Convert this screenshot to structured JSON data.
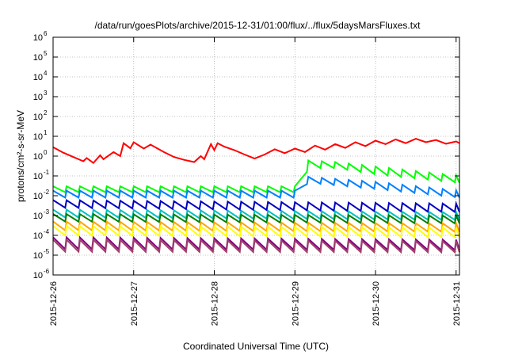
{
  "chart_data": {
    "type": "line",
    "title": "/data/run/goesPlots/archive/2015-12-31/01:00/flux/../flux/5daysMarsFluxes.txt",
    "xlabel": "Coordinated Universal Time (UTC)",
    "ylabel": "protons/cm²-s-sr-MeV",
    "y_scale": "log",
    "ylim": [
      1e-06,
      1000000.0
    ],
    "xlim": [
      "2015-12-26T00:00",
      "2015-12-31T01:00"
    ],
    "x_ticks": [
      "2015-12-26",
      "2015-12-27",
      "2015-12-28",
      "2015-12-29",
      "2015-12-30",
      "2015-12-31"
    ],
    "y_ticks": [
      {
        "value": 1e-06,
        "mantissa": "10",
        "exp": "-6"
      },
      {
        "value": 1e-05,
        "mantissa": "10",
        "exp": "-5"
      },
      {
        "value": 0.0001,
        "mantissa": "10",
        "exp": "-4"
      },
      {
        "value": 0.001,
        "mantissa": "10",
        "exp": "-3"
      },
      {
        "value": 0.01,
        "mantissa": "10",
        "exp": "-2"
      },
      {
        "value": 0.1,
        "mantissa": "10",
        "exp": "-1"
      },
      {
        "value": 1,
        "mantissa": "10",
        "exp": "0"
      },
      {
        "value": 10,
        "mantissa": "10",
        "exp": "1"
      },
      {
        "value": 100,
        "mantissa": "10",
        "exp": "2"
      },
      {
        "value": 1000,
        "mantissa": "10",
        "exp": "3"
      },
      {
        "value": 10000,
        "mantissa": "10",
        "exp": "4"
      },
      {
        "value": 100000,
        "mantissa": "10",
        "exp": "5"
      },
      {
        "value": 1000000,
        "mantissa": "10",
        "exp": "6"
      }
    ],
    "grid": true,
    "legend": "none",
    "series": [
      {
        "color": "#ff0000",
        "points": [
          [
            "2015-12-26T00:00",
            2.8
          ],
          [
            "2015-12-26T03:00",
            1.5
          ],
          [
            "2015-12-26T06:00",
            0.9
          ],
          [
            "2015-12-26T09:00",
            0.55
          ],
          [
            "2015-12-26T10:00",
            0.8
          ],
          [
            "2015-12-26T12:00",
            0.45
          ],
          [
            "2015-12-26T14:00",
            1.1
          ],
          [
            "2015-12-26T15:00",
            0.7
          ],
          [
            "2015-12-26T18:00",
            1.6
          ],
          [
            "2015-12-26T20:00",
            1.0
          ],
          [
            "2015-12-26T21:00",
            4.5
          ],
          [
            "2015-12-26T23:00",
            2.5
          ],
          [
            "2015-12-27T00:00",
            5.0
          ],
          [
            "2015-12-27T03:00",
            2.4
          ],
          [
            "2015-12-27T05:00",
            3.8
          ],
          [
            "2015-12-27T09:00",
            1.6
          ],
          [
            "2015-12-27T12:00",
            0.9
          ],
          [
            "2015-12-27T15:00",
            0.65
          ],
          [
            "2015-12-27T18:00",
            0.5
          ],
          [
            "2015-12-27T20:00",
            1.0
          ],
          [
            "2015-12-27T21:00",
            0.7
          ],
          [
            "2015-12-27T23:00",
            4.0
          ],
          [
            "2015-12-28T00:00",
            2.0
          ],
          [
            "2015-12-28T01:00",
            4.5
          ],
          [
            "2015-12-28T03:00",
            3.0
          ],
          [
            "2015-12-28T06:00",
            2.0
          ],
          [
            "2015-12-28T09:00",
            1.2
          ],
          [
            "2015-12-28T12:00",
            0.75
          ],
          [
            "2015-12-28T15:00",
            1.2
          ],
          [
            "2015-12-28T18:00",
            2.2
          ],
          [
            "2015-12-28T21:00",
            1.4
          ],
          [
            "2015-12-29T00:00",
            2.4
          ],
          [
            "2015-12-29T03:00",
            1.6
          ],
          [
            "2015-12-29T06:00",
            3.4
          ],
          [
            "2015-12-29T09:00",
            2.1
          ],
          [
            "2015-12-29T12:00",
            4.0
          ],
          [
            "2015-12-29T15:00",
            2.6
          ],
          [
            "2015-12-29T18:00",
            5.0
          ],
          [
            "2015-12-29T21:00",
            3.2
          ],
          [
            "2015-12-30T00:00",
            6.0
          ],
          [
            "2015-12-30T03:00",
            4.0
          ],
          [
            "2015-12-30T06:00",
            7.0
          ],
          [
            "2015-12-30T09:00",
            4.5
          ],
          [
            "2015-12-30T12:00",
            7.5
          ],
          [
            "2015-12-30T15:00",
            5.0
          ],
          [
            "2015-12-30T18:00",
            6.5
          ],
          [
            "2015-12-30T21:00",
            4.2
          ],
          [
            "2015-12-31T00:00",
            5.5
          ],
          [
            "2015-12-31T01:00",
            4.5
          ]
        ]
      },
      {
        "color": "#00ff00",
        "sawtooth": {
          "period_hours": 4,
          "phases": [
            [
              "2015-12-26T00:00",
              0.03,
              0.015
            ],
            [
              "2015-12-29T00:00",
              0.03,
              0.015
            ],
            [
              "2015-12-29T01:00",
              0.06,
              0.03
            ],
            [
              "2015-12-29T04:00",
              0.6,
              0.25
            ],
            [
              "2015-12-29T12:00",
              0.5,
              0.25
            ],
            [
              "2015-12-30T00:00",
              0.3,
              0.12
            ],
            [
              "2015-12-31T01:00",
              0.1,
              0.045
            ]
          ]
        }
      },
      {
        "color": "#0080ff",
        "sawtooth": {
          "period_hours": 4,
          "phases": [
            [
              "2015-12-26T00:00",
              0.018,
              0.008
            ],
            [
              "2015-12-29T00:00",
              0.018,
              0.008
            ],
            [
              "2015-12-29T01:00",
              0.04,
              0.02
            ],
            [
              "2015-12-29T04:00",
              0.09,
              0.045
            ],
            [
              "2015-12-30T00:00",
              0.05,
              0.022
            ],
            [
              "2015-12-31T01:00",
              0.018,
              0.008
            ]
          ]
        }
      },
      {
        "color": "#0000c0",
        "sawtooth": {
          "period_hours": 4,
          "phases": [
            [
              "2015-12-26T00:00",
              0.006,
              0.0025
            ],
            [
              "2015-12-31T01:00",
              0.004,
              0.0015
            ]
          ]
        }
      },
      {
        "color": "#00c0c0",
        "sawtooth": {
          "period_hours": 4,
          "phases": [
            [
              "2015-12-26T00:00",
              0.002,
              0.0008
            ],
            [
              "2015-12-31T01:00",
              0.0015,
              0.0006
            ]
          ]
        }
      },
      {
        "color": "#008000",
        "sawtooth": {
          "period_hours": 4,
          "phases": [
            [
              "2015-12-26T00:00",
              0.0012,
              0.0005
            ],
            [
              "2015-12-31T01:00",
              0.001,
              0.0004
            ]
          ]
        }
      },
      {
        "color": "#ffa500",
        "sawtooth": {
          "period_hours": 4,
          "phases": [
            [
              "2015-12-26T00:00",
              0.0005,
              0.00018
            ],
            [
              "2015-12-31T01:00",
              0.0004,
              0.00015
            ]
          ]
        }
      },
      {
        "color": "#ffff00",
        "sawtooth": {
          "period_hours": 4,
          "phases": [
            [
              "2015-12-26T00:00",
              0.0003,
              0.0001
            ],
            [
              "2015-12-31T01:00",
              0.00025,
              8e-05
            ]
          ]
        }
      },
      {
        "color": "#800080",
        "sawtooth": {
          "period_hours": 4,
          "phases": [
            [
              "2015-12-26T00:00",
              8e-05,
              2e-05
            ],
            [
              "2015-12-31T01:00",
              6e-05,
              1.8e-05
            ]
          ]
        }
      },
      {
        "color": "#a0406a",
        "sawtooth": {
          "period_hours": 4,
          "phases": [
            [
              "2015-12-26T00:00",
              6e-05,
              1.5e-05
            ],
            [
              "2015-12-31T01:00",
              5e-05,
              1.4e-05
            ]
          ]
        }
      }
    ]
  }
}
